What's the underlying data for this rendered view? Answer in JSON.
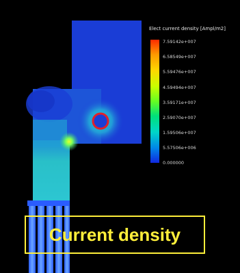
{
  "legend": {
    "title": "Elect current density [Ampl/m2]",
    "labels": [
      "7.59142e+007",
      "6.58549e+007",
      "5.59476e+007",
      "4.59494e+007",
      "3.59171e+007",
      "2.59070e+007",
      "1.59506e+007",
      "5.57506e+006",
      "0.000000"
    ],
    "colors": [
      "#ff2a00",
      "#ff9900",
      "#ffd800",
      "#c8ff00",
      "#66ff22",
      "#00e07a",
      "#00d6c8",
      "#0086e8",
      "#1028e0"
    ]
  },
  "caption": "Current density",
  "colors": {
    "background": "#000000",
    "field_low": "#1a3dd6",
    "field_mid": "#27b8d6",
    "field_high": "#33e07a",
    "contact_ring": "#e0202a",
    "caption_accent": "#ffef3a"
  }
}
